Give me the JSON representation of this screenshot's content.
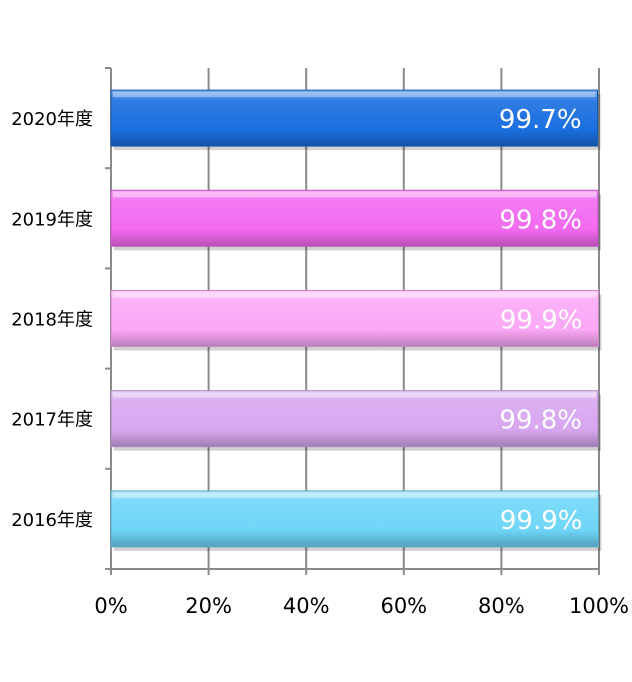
{
  "chart_data": {
    "type": "bar",
    "orientation": "horizontal",
    "categories": [
      "2020年度",
      "2019年度",
      "2018年度",
      "2017年度",
      "2016年度"
    ],
    "values": [
      99.7,
      99.8,
      99.9,
      99.8,
      99.9
    ],
    "data_labels": [
      "99.7%",
      "99.8%",
      "99.9%",
      "99.8%",
      "99.9%"
    ],
    "bar_colors": [
      "#1a6fe0",
      "#f26af0",
      "#fba8f6",
      "#d7a6ef",
      "#6fd6f8"
    ],
    "xlim": [
      0,
      100
    ],
    "x_ticks": [
      0,
      20,
      40,
      60,
      80,
      100
    ],
    "x_tick_labels": [
      "0%",
      "20%",
      "40%",
      "60%",
      "80%",
      "100%"
    ],
    "grid": true,
    "legend": "none",
    "title": "",
    "xlabel": "",
    "ylabel": ""
  }
}
